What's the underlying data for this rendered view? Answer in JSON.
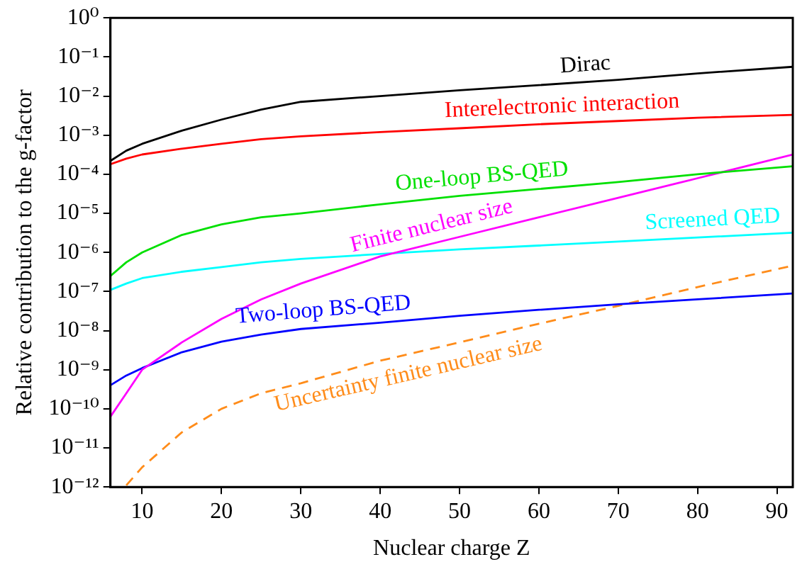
{
  "chart_data": {
    "type": "line",
    "xlabel": "Nuclear charge Z",
    "ylabel": "Relative contribution to the g-factor",
    "log": "y",
    "grid": false,
    "legend": false,
    "marker": "none",
    "xlim": [
      6,
      92
    ],
    "xticks": [
      10,
      20,
      30,
      40,
      50,
      60,
      70,
      80,
      90
    ],
    "ylim": [
      1e-12,
      1
    ],
    "yticks": [
      {
        "value": 1e-12,
        "label": "10⁻¹²"
      },
      {
        "value": 1e-11,
        "label": "10⁻¹¹"
      },
      {
        "value": 1e-10,
        "label": "10⁻¹⁰"
      },
      {
        "value": 1e-09,
        "label": "10⁻⁹"
      },
      {
        "value": 1e-08,
        "label": "10⁻⁸"
      },
      {
        "value": 1e-07,
        "label": "10⁻⁷"
      },
      {
        "value": 1e-06,
        "label": "10⁻⁶"
      },
      {
        "value": 1e-05,
        "label": "10⁻⁵"
      },
      {
        "value": 0.0001,
        "label": "10⁻⁴"
      },
      {
        "value": 0.001,
        "label": "10⁻³"
      },
      {
        "value": 0.01,
        "label": "10⁻²"
      },
      {
        "value": 0.1,
        "label": "10⁻¹"
      },
      {
        "value": 1,
        "label": "10⁰"
      }
    ],
    "x": [
      6,
      8,
      10,
      15,
      20,
      25,
      30,
      40,
      50,
      60,
      70,
      80,
      92
    ],
    "series": [
      {
        "name": "Dirac",
        "color": "#000000",
        "line_style": "solid",
        "values": [
          0.00022,
          0.0004,
          0.0006,
          0.0013,
          0.0025,
          0.0045,
          0.0071,
          0.01,
          0.014,
          0.019,
          0.026,
          0.038,
          0.056
        ]
      },
      {
        "name": "Interelectronic interaction",
        "color": "#ff0000",
        "line_style": "solid",
        "values": [
          0.00018,
          0.00025,
          0.00032,
          0.00045,
          0.0006,
          0.00079,
          0.00093,
          0.0012,
          0.0015,
          0.0019,
          0.0023,
          0.0028,
          0.0033
        ]
      },
      {
        "name": "One-loop BS-QED",
        "color": "#00e000",
        "line_style": "solid",
        "values": [
          2.5e-07,
          5.6e-07,
          1e-06,
          2.8e-06,
          5.2e-06,
          7.9e-06,
          1e-05,
          1.7e-05,
          2.8e-05,
          4.2e-05,
          6.3e-05,
          0.0001,
          0.00016
        ]
      },
      {
        "name": "Finite nuclear size",
        "color": "#ff00ff",
        "line_style": "solid",
        "values": [
          6.3e-11,
          2.5e-10,
          1e-09,
          5e-09,
          2e-08,
          6.3e-08,
          1.6e-07,
          7.9e-07,
          2.5e-06,
          7.9e-06,
          2.5e-05,
          7.9e-05,
          0.00032
        ]
      },
      {
        "name": "Screened QED",
        "color": "#00ffff",
        "line_style": "solid",
        "values": [
          1.1e-07,
          1.6e-07,
          2.2e-07,
          3.2e-07,
          4.2e-07,
          5.6e-07,
          6.8e-07,
          9.1e-07,
          1.2e-06,
          1.5e-06,
          1.9e-06,
          2.4e-06,
          3.2e-06
        ]
      },
      {
        "name": "Two-loop BS-QED",
        "color": "#0000ff",
        "line_style": "solid",
        "values": [
          4e-10,
          7.1e-10,
          1.1e-09,
          2.8e-09,
          5.2e-09,
          7.9e-09,
          1.1e-08,
          1.6e-08,
          2.4e-08,
          3.4e-08,
          4.7e-08,
          6.3e-08,
          8.9e-08
        ]
      },
      {
        "name": "Uncertainty finite nuclear size",
        "color": "#ff8c1a",
        "line_style": "dashed",
        "x": [
          8,
          10,
          15,
          20,
          25,
          30,
          40,
          50,
          60,
          70,
          80,
          92
        ],
        "values": [
          1.1e-12,
          3.2e-12,
          2.5e-11,
          1e-10,
          2.5e-10,
          4.5e-10,
          1.7e-09,
          5e-09,
          1.5e-08,
          4.3e-08,
          1.3e-07,
          4.6e-07
        ]
      }
    ]
  }
}
